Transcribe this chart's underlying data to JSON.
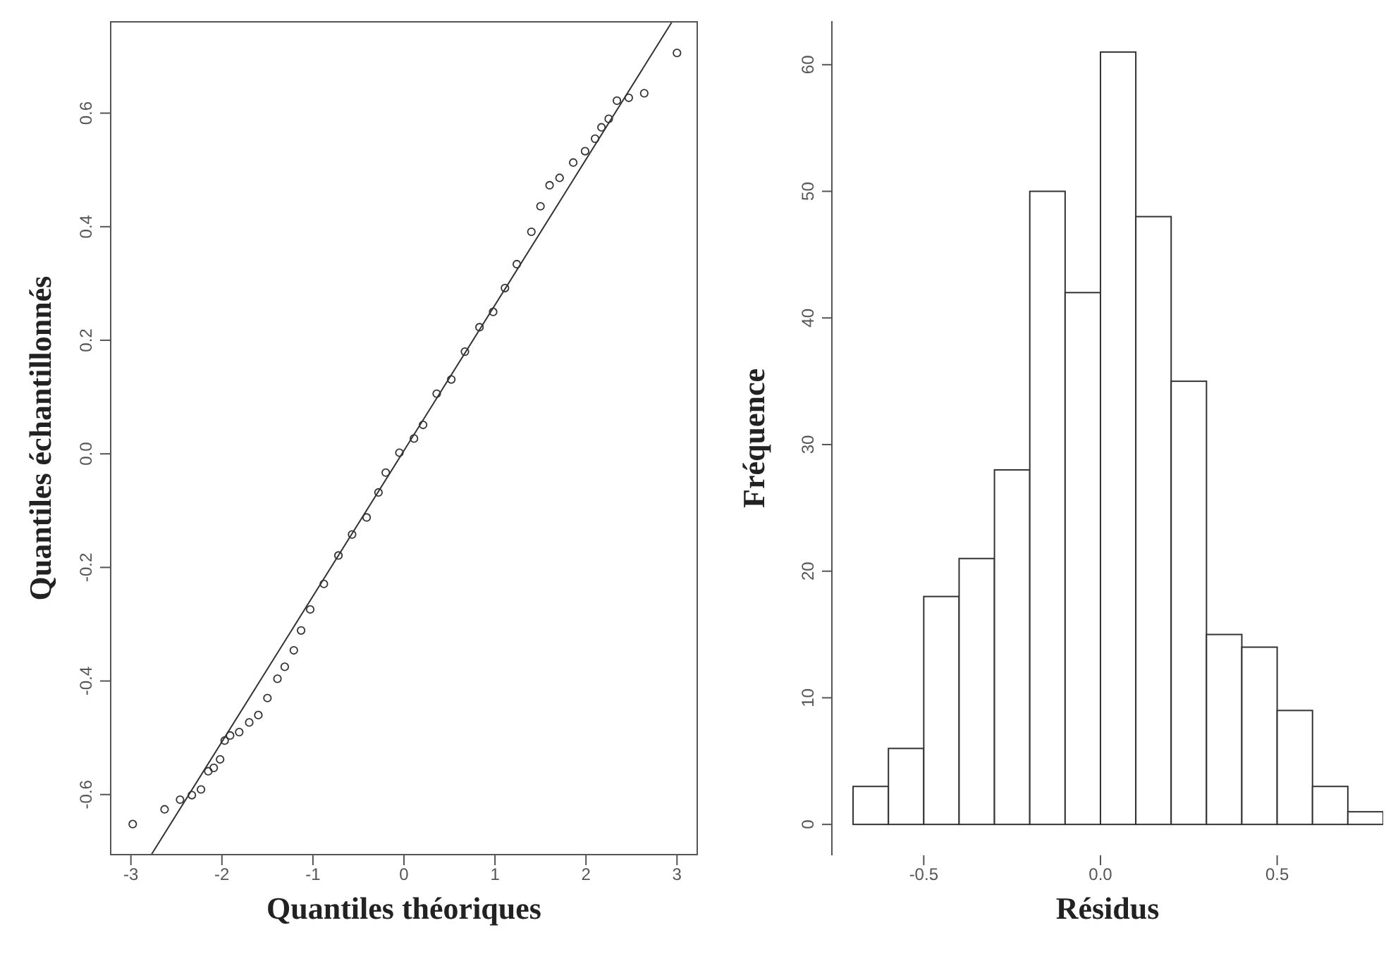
{
  "chart_data": [
    {
      "type": "scatter",
      "xlabel": "Quantiles théoriques",
      "ylabel": "Quantiles échantillonnés",
      "xlim": [
        -3.23,
        3.23
      ],
      "ylim": [
        -0.707,
        0.762
      ],
      "xticks": [
        -3,
        -2,
        -1,
        0,
        1,
        2,
        3
      ],
      "yticks": [
        -0.6,
        -0.4,
        -0.2,
        {
          "value": 0,
          "label": "0.0"
        },
        0.2,
        0.4,
        0.6
      ],
      "grid": false,
      "series": [
        {
          "type": "scatter",
          "marker": "circle",
          "color": "#333333",
          "x": [
            -2.98,
            -2.63,
            -2.46,
            -2.33,
            -2.23,
            -2.15,
            -2.09,
            -2.02,
            -1.97,
            -1.91,
            -1.81,
            -1.7,
            -1.6,
            -1.5,
            -1.39,
            -1.31,
            -1.21,
            -1.13,
            -1.03,
            -0.88,
            -0.72,
            -0.57,
            -0.41,
            -0.28,
            -0.2,
            -0.05,
            0.11,
            0.21,
            0.36,
            0.52,
            0.67,
            0.83,
            0.98,
            1.11,
            1.24,
            1.4,
            1.5,
            1.6,
            1.71,
            1.86,
            1.99,
            2.1,
            2.17,
            2.25,
            2.34,
            2.47,
            2.64,
            3.0
          ],
          "values": [
            -0.652,
            -0.626,
            -0.609,
            -0.601,
            -0.591,
            -0.559,
            -0.553,
            -0.538,
            -0.505,
            -0.496,
            -0.49,
            -0.473,
            -0.46,
            -0.43,
            -0.396,
            -0.375,
            -0.346,
            -0.311,
            -0.274,
            -0.229,
            -0.179,
            -0.142,
            -0.112,
            -0.068,
            -0.033,
            0.002,
            0.027,
            0.051,
            0.106,
            0.131,
            0.18,
            0.223,
            0.25,
            0.292,
            0.334,
            0.391,
            0.436,
            0.473,
            0.486,
            0.513,
            0.533,
            0.555,
            0.575,
            0.59,
            0.622,
            0.627,
            0.635,
            0.706
          ]
        },
        {
          "type": "line",
          "marker": "none",
          "color": "#333333",
          "x": [
            -2.78,
            2.95
          ],
          "values": [
            -0.707,
            0.762
          ]
        }
      ]
    },
    {
      "type": "histogram",
      "xlabel": "Résidus",
      "ylabel": "Fréquence",
      "xlim": [
        -0.76,
        0.8
      ],
      "ylim": [
        -2.44,
        63.44
      ],
      "xticks": [
        -0.5,
        {
          "value": 0,
          "label": "0.0"
        },
        0.5
      ],
      "yticks": [
        0,
        10,
        20,
        30,
        40,
        50,
        60
      ],
      "grid": false,
      "color": "#ffffff",
      "bins": [
        -0.7,
        -0.6,
        -0.5,
        -0.4,
        -0.3,
        -0.2,
        -0.1,
        0,
        0.1,
        0.2,
        0.3,
        0.4,
        0.5,
        0.6,
        0.7,
        0.8
      ],
      "values": [
        3,
        6,
        18,
        21,
        28,
        50,
        42,
        61,
        48,
        35,
        15,
        14,
        9,
        3,
        1
      ]
    }
  ]
}
